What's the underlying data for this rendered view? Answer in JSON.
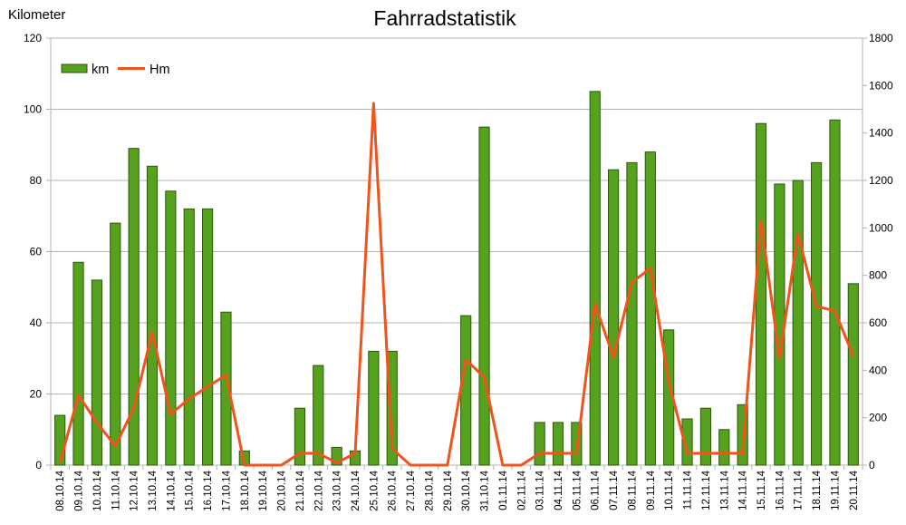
{
  "chart_data": {
    "type": "bar",
    "title": "Fahrradstatistik",
    "y_unit_label": "Kilometer",
    "ylim": [
      0,
      120
    ],
    "y2lim": [
      0,
      1800
    ],
    "yticks": [
      0,
      20,
      40,
      60,
      80,
      100,
      120
    ],
    "y2ticks": [
      0,
      200,
      400,
      600,
      800,
      1000,
      1200,
      1400,
      1600,
      1800
    ],
    "grid": true,
    "legend_position": "top-left",
    "categories": [
      "08.10.14",
      "09.10.14",
      "10.10.14",
      "11.10.14",
      "12.10.14",
      "13.10.14",
      "14.10.14",
      "15.10.14",
      "16.10.14",
      "17.10.14",
      "18.10.14",
      "19.10.14",
      "20.10.14",
      "21.10.14",
      "22.10.14",
      "23.10.14",
      "24.10.14",
      "25.10.14",
      "26.10.14",
      "27.10.14",
      "28.10.14",
      "29.10.14",
      "30.10.14",
      "31.10.14",
      "01.11.14",
      "02.11.14",
      "03.11.14",
      "04.11.14",
      "05.11.14",
      "06.11.14",
      "07.11.14",
      "08.11.14",
      "09.11.14",
      "10.11.14",
      "11.11.14",
      "12.11.14",
      "13.11.14",
      "14.11.14",
      "15.11.14",
      "16.11.14",
      "17.11.14",
      "18.11.14",
      "19.11.14",
      "20.11.14"
    ],
    "series": [
      {
        "name": "km",
        "type": "bar",
        "axis": "left",
        "color": "#56a11e",
        "values": [
          14,
          57,
          52,
          68,
          89,
          84,
          77,
          72,
          72,
          43,
          4,
          0,
          0,
          16,
          28,
          5,
          4,
          32,
          32,
          0,
          0,
          0,
          42,
          95,
          0,
          0,
          12,
          12,
          12,
          105,
          83,
          85,
          88,
          38,
          13,
          16,
          10,
          17,
          96,
          79,
          80,
          85,
          97,
          51
        ]
      },
      {
        "name": "Hm",
        "type": "line",
        "axis": "right",
        "color": "#f0541c",
        "values": [
          10,
          295,
          180,
          80,
          240,
          560,
          215,
          280,
          330,
          380,
          0,
          0,
          0,
          50,
          50,
          10,
          50,
          1525,
          70,
          0,
          0,
          0,
          445,
          370,
          0,
          0,
          50,
          50,
          50,
          680,
          455,
          770,
          830,
          350,
          50,
          50,
          50,
          50,
          1030,
          450,
          975,
          670,
          650,
          460
        ]
      }
    ]
  }
}
